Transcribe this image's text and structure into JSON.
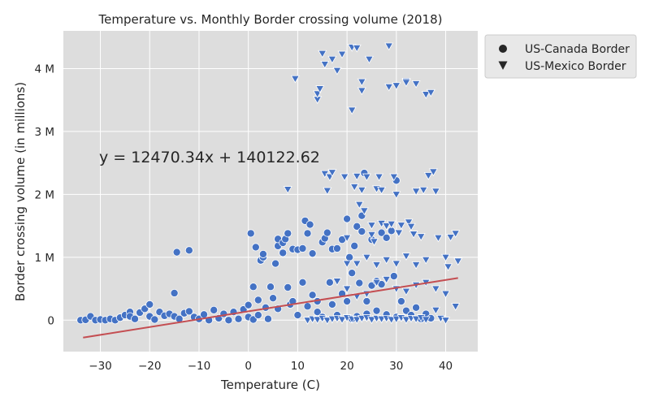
{
  "chart_data": {
    "type": "scatter",
    "title": "Temperature vs. Monthly Border crossing volume (2018)",
    "xlabel": "Temperature (C)",
    "ylabel": "Border crossing volume (in millions)",
    "xlim": [
      -37.5,
      46.5
    ],
    "ylim": [
      -500000,
      4600000
    ],
    "xticks": [
      -30,
      -20,
      -10,
      0,
      10,
      20,
      30,
      40
    ],
    "xtick_labels": [
      "−30",
      "−20",
      "−10",
      "0",
      "10",
      "20",
      "30",
      "40"
    ],
    "yticks": [
      0,
      1000000,
      2000000,
      3000000,
      4000000
    ],
    "ytick_labels": [
      "0",
      "1 M",
      "2 M",
      "3 M",
      "4 M"
    ],
    "grid": true,
    "legend_position": "outside-right",
    "annotation": "y = 12470.34x + 140122.62",
    "regression": {
      "slope": 12470.34,
      "intercept": 140122.62,
      "x_range": [
        -33.5,
        42.5
      ],
      "color": "#c44e52"
    },
    "colors": {
      "background": "#dddddd",
      "grid": "#ffffff",
      "marker": "#4472c4",
      "marker_edge": "#ffffff"
    },
    "series": [
      {
        "name": "US-Canada Border",
        "marker": "circle",
        "points": [
          [
            -34,
            0
          ],
          [
            -33,
            5000
          ],
          [
            -32,
            60000
          ],
          [
            -31,
            0
          ],
          [
            -30,
            10000
          ],
          [
            -29,
            0
          ],
          [
            -28,
            20000
          ],
          [
            -27,
            0
          ],
          [
            -26,
            40000
          ],
          [
            -25,
            80000
          ],
          [
            -24,
            130000
          ],
          [
            -24,
            60000
          ],
          [
            -23,
            20000
          ],
          [
            -22,
            120000
          ],
          [
            -21,
            180000
          ],
          [
            -20,
            250000
          ],
          [
            -20,
            60000
          ],
          [
            -19,
            10000
          ],
          [
            -18,
            130000
          ],
          [
            -17,
            70000
          ],
          [
            -16,
            100000
          ],
          [
            -15,
            430000
          ],
          [
            -15,
            60000
          ],
          [
            -14.5,
            1080000
          ],
          [
            -14,
            20000
          ],
          [
            -13,
            110000
          ],
          [
            -12,
            1110000
          ],
          [
            -12,
            140000
          ],
          [
            -11,
            50000
          ],
          [
            -10,
            20000
          ],
          [
            -9,
            90000
          ],
          [
            -8,
            0
          ],
          [
            -7,
            160000
          ],
          [
            -6,
            30000
          ],
          [
            -5,
            100000
          ],
          [
            -4,
            0
          ],
          [
            -3,
            130000
          ],
          [
            -2,
            20000
          ],
          [
            -1,
            170000
          ],
          [
            0,
            50000
          ],
          [
            0,
            240000
          ],
          [
            0.5,
            1380000
          ],
          [
            1,
            530000
          ],
          [
            1,
            10000
          ],
          [
            1.5,
            1160000
          ],
          [
            2,
            320000
          ],
          [
            2,
            80000
          ],
          [
            2.5,
            950000
          ],
          [
            3,
            1000000
          ],
          [
            3,
            1050000
          ],
          [
            3.5,
            200000
          ],
          [
            4,
            20000
          ],
          [
            4.5,
            530000
          ],
          [
            5,
            350000
          ],
          [
            5.5,
            900000
          ],
          [
            6,
            1180000
          ],
          [
            6,
            1290000
          ],
          [
            6,
            180000
          ],
          [
            7,
            1230000
          ],
          [
            7,
            1070000
          ],
          [
            7.5,
            1290000
          ],
          [
            8,
            1380000
          ],
          [
            8,
            520000
          ],
          [
            8.5,
            250000
          ],
          [
            9,
            1130000
          ],
          [
            9,
            300000
          ],
          [
            10,
            1120000
          ],
          [
            10,
            80000
          ],
          [
            11,
            1140000
          ],
          [
            11,
            600000
          ],
          [
            11.5,
            1580000
          ],
          [
            12,
            1380000
          ],
          [
            12,
            220000
          ],
          [
            12.5,
            1520000
          ],
          [
            13,
            1060000
          ],
          [
            13,
            400000
          ],
          [
            14,
            300000
          ],
          [
            14,
            130000
          ],
          [
            15,
            1240000
          ],
          [
            15,
            50000
          ],
          [
            15.5,
            1300000
          ],
          [
            16,
            1390000
          ],
          [
            16.5,
            600000
          ],
          [
            17,
            1130000
          ],
          [
            17,
            250000
          ],
          [
            18,
            1140000
          ],
          [
            18,
            80000
          ],
          [
            19,
            1280000
          ],
          [
            19,
            420000
          ],
          [
            20,
            1610000
          ],
          [
            20,
            300000
          ],
          [
            20.5,
            1000000
          ],
          [
            21,
            750000
          ],
          [
            21,
            20000
          ],
          [
            21.5,
            1180000
          ],
          [
            22,
            1490000
          ],
          [
            22,
            60000
          ],
          [
            22.5,
            590000
          ],
          [
            23,
            1410000
          ],
          [
            23,
            1660000
          ],
          [
            23.5,
            2340000
          ],
          [
            24,
            300000
          ],
          [
            24,
            100000
          ],
          [
            25,
            550000
          ],
          [
            25,
            1280000
          ],
          [
            26,
            620000
          ],
          [
            26,
            150000
          ],
          [
            27,
            570000
          ],
          [
            27,
            1390000
          ],
          [
            28,
            1310000
          ],
          [
            28,
            90000
          ],
          [
            29,
            1420000
          ],
          [
            29.5,
            700000
          ],
          [
            30,
            2220000
          ],
          [
            30,
            50000
          ],
          [
            31,
            300000
          ],
          [
            32,
            150000
          ],
          [
            33,
            80000
          ],
          [
            34,
            200000
          ],
          [
            35,
            20000
          ],
          [
            36,
            100000
          ],
          [
            37,
            30000
          ]
        ]
      },
      {
        "name": "US-Mexico Border",
        "marker": "triangle",
        "points": [
          [
            8,
            2080000
          ],
          [
            9.5,
            3840000
          ],
          [
            14,
            3510000
          ],
          [
            14,
            3600000
          ],
          [
            14.5,
            3680000
          ],
          [
            15,
            4240000
          ],
          [
            15.5,
            2330000
          ],
          [
            15.5,
            4070000
          ],
          [
            16,
            2060000
          ],
          [
            16.5,
            2280000
          ],
          [
            17,
            4150000
          ],
          [
            17,
            2350000
          ],
          [
            18,
            3970000
          ],
          [
            19,
            4230000
          ],
          [
            19.5,
            2280000
          ],
          [
            20,
            1310000
          ],
          [
            20,
            900000
          ],
          [
            21,
            3340000
          ],
          [
            21,
            4340000
          ],
          [
            21.5,
            2120000
          ],
          [
            22,
            4330000
          ],
          [
            22,
            2290000
          ],
          [
            22.5,
            1840000
          ],
          [
            23,
            3650000
          ],
          [
            23,
            3790000
          ],
          [
            23,
            2070000
          ],
          [
            23.5,
            1740000
          ],
          [
            24,
            2280000
          ],
          [
            24.5,
            4150000
          ],
          [
            25,
            1510000
          ],
          [
            25,
            1360000
          ],
          [
            25.5,
            1250000
          ],
          [
            26,
            2090000
          ],
          [
            26.5,
            2280000
          ],
          [
            27,
            1540000
          ],
          [
            27,
            2070000
          ],
          [
            28,
            1500000
          ],
          [
            28.5,
            3710000
          ],
          [
            28.5,
            4360000
          ],
          [
            29,
            1530000
          ],
          [
            29.5,
            2280000
          ],
          [
            30,
            3730000
          ],
          [
            30,
            2000000
          ],
          [
            30.5,
            1390000
          ],
          [
            31,
            1510000
          ],
          [
            32,
            3800000
          ],
          [
            32,
            3780000
          ],
          [
            32.5,
            1560000
          ],
          [
            33,
            1490000
          ],
          [
            33.5,
            1370000
          ],
          [
            34,
            3760000
          ],
          [
            34,
            2050000
          ],
          [
            35,
            1330000
          ],
          [
            35.5,
            2070000
          ],
          [
            36,
            3590000
          ],
          [
            36.5,
            2300000
          ],
          [
            37,
            3620000
          ],
          [
            37.5,
            2360000
          ],
          [
            38,
            2050000
          ],
          [
            38.5,
            1310000
          ],
          [
            40,
            1000000
          ],
          [
            40.5,
            850000
          ],
          [
            41,
            1320000
          ],
          [
            42,
            1380000
          ],
          [
            42.5,
            940000
          ],
          [
            12,
            0
          ],
          [
            13,
            20000
          ],
          [
            14,
            10000
          ],
          [
            15,
            30000
          ],
          [
            16,
            0
          ],
          [
            17,
            20000
          ],
          [
            18,
            30000
          ],
          [
            19,
            10000
          ],
          [
            20,
            40000
          ],
          [
            21,
            20000
          ],
          [
            22,
            10000
          ],
          [
            23,
            30000
          ],
          [
            24,
            40000
          ],
          [
            25,
            10000
          ],
          [
            26,
            30000
          ],
          [
            27,
            20000
          ],
          [
            28,
            30000
          ],
          [
            29,
            10000
          ],
          [
            30,
            20000
          ],
          [
            31,
            40000
          ],
          [
            32,
            10000
          ],
          [
            33,
            30000
          ],
          [
            34,
            20000
          ],
          [
            35,
            40000
          ],
          [
            36,
            10000
          ],
          [
            38,
            160000
          ],
          [
            39,
            30000
          ],
          [
            40,
            0
          ],
          [
            42,
            220000
          ],
          [
            18,
            620000
          ],
          [
            20,
            500000
          ],
          [
            22,
            380000
          ],
          [
            24,
            420000
          ],
          [
            26,
            600000
          ],
          [
            28,
            650000
          ],
          [
            30,
            500000
          ],
          [
            32,
            460000
          ],
          [
            34,
            560000
          ],
          [
            36,
            600000
          ],
          [
            38,
            500000
          ],
          [
            40,
            420000
          ],
          [
            22,
            900000
          ],
          [
            24,
            1000000
          ],
          [
            26,
            880000
          ],
          [
            28,
            960000
          ],
          [
            30,
            900000
          ],
          [
            32,
            1020000
          ],
          [
            34,
            880000
          ],
          [
            36,
            960000
          ]
        ]
      }
    ]
  }
}
